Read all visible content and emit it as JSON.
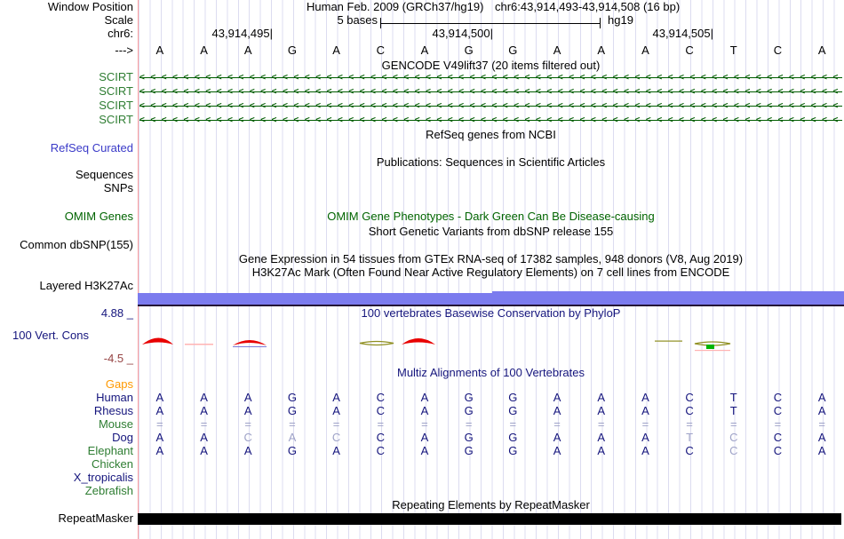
{
  "colors": {
    "grid_line": "#dcdcf0",
    "track_border": "#ffa0a0",
    "navy_text": "#15157d",
    "green_label": "#2e7d32",
    "omim_green": "#006400",
    "refseq_blue": "#3a3ac8",
    "gaps_orange": "#ff9900",
    "min_maroon": "#964444",
    "h3k27ac_bar": "#7b7bee",
    "repeat_bar": "#000000",
    "muted_base": "#9fa3c8",
    "wiggle_red": "#e80000",
    "wiggle_olive": "#8f8f20",
    "wiggle_green": "#00b400"
  },
  "header": {
    "window_position_label": "Window Position",
    "scale_row_label": "Scale",
    "chrom_label": "chr6:",
    "direction_label": "--->",
    "assembly_title": "Human Feb. 2009 (GRCh37/hg19)",
    "position_title": "chr6:43,914,493-43,914,508 (16 bp)",
    "scale_label": "5 bases",
    "assembly_short": "hg19",
    "coordinates": [
      "43,914,495|",
      "43,914,500|",
      "43,914,505|"
    ]
  },
  "sequence": {
    "bases": [
      "A",
      "A",
      "A",
      "G",
      "A",
      "C",
      "A",
      "G",
      "G",
      "A",
      "A",
      "A",
      "C",
      "T",
      "C",
      "A"
    ]
  },
  "tracks": {
    "gencode": {
      "title": "GENCODE V49lift37 (20 items filtered out)",
      "items": [
        "SCIRT",
        "SCIRT",
        "SCIRT",
        "SCIRT"
      ]
    },
    "refseq": {
      "label": "RefSeq Curated",
      "title": "RefSeq genes from NCBI"
    },
    "publications": {
      "label_line1": "Sequences",
      "label_line2": "SNPs",
      "title": "Publications: Sequences in Scientific Articles"
    },
    "omim": {
      "label": "OMIM Genes",
      "title": "OMIM Gene Phenotypes - Dark Green Can Be Disease-causing"
    },
    "dbsnp": {
      "label": "Common dbSNP(155)",
      "title": "Short Genetic Variants from dbSNP release 155"
    },
    "gtex": {
      "title": "Gene Expression in 54 tissues from GTEx RNA-seq of 17382 samples, 948 donors (V8, Aug 2019)"
    },
    "h3k27ac": {
      "label": "Layered H3K27Ac",
      "title": "H3K27Ac Mark (Often Found Near Active Regulatory Elements) on 7 cell lines from ENCODE"
    },
    "conservation": {
      "label": "100 Vert. Cons",
      "title": "100 vertebrates Basewise Conservation by PhyloP",
      "max": "4.88 _",
      "min": "-4.5 _"
    },
    "multiz": {
      "title": "Multiz Alignments of 100 Vertebrates",
      "rows": [
        {
          "label": "Gaps",
          "bases": [],
          "muted": []
        },
        {
          "label": "Human",
          "bases": [
            "A",
            "A",
            "A",
            "G",
            "A",
            "C",
            "A",
            "G",
            "G",
            "A",
            "A",
            "A",
            "C",
            "T",
            "C",
            "A"
          ],
          "muted": []
        },
        {
          "label": "Rhesus",
          "bases": [
            "A",
            "A",
            "A",
            "G",
            "A",
            "C",
            "A",
            "G",
            "G",
            "A",
            "A",
            "A",
            "C",
            "T",
            "C",
            "A"
          ],
          "muted": []
        },
        {
          "label": "Mouse",
          "bases": [
            "=",
            "=",
            "=",
            "=",
            "=",
            "=",
            "=",
            "=",
            "=",
            "=",
            "=",
            "=",
            "=",
            "=",
            "=",
            "="
          ],
          "muted": [
            0,
            1,
            2,
            3,
            4,
            5,
            6,
            7,
            8,
            9,
            10,
            11,
            12,
            13,
            14,
            15
          ]
        },
        {
          "label": "Dog",
          "bases": [
            "A",
            "A",
            "C",
            "A",
            "C",
            "C",
            "A",
            "G",
            "G",
            "A",
            "A",
            "A",
            "T",
            "C",
            "C",
            "A"
          ],
          "muted": [
            2,
            3,
            4,
            12,
            13
          ]
        },
        {
          "label": "Elephant",
          "bases": [
            "A",
            "A",
            "A",
            "G",
            "A",
            "C",
            "A",
            "G",
            "G",
            "A",
            "A",
            "A",
            "C",
            "C",
            "C",
            "A"
          ],
          "muted": [
            13
          ]
        },
        {
          "label": "Chicken",
          "bases": [],
          "muted": []
        },
        {
          "label": "X_tropicalis",
          "bases": [],
          "muted": []
        },
        {
          "label": "Zebrafish",
          "bases": [],
          "muted": []
        }
      ]
    },
    "repeatmasker": {
      "label": "RepeatMasker",
      "title": "Repeating Elements by RepeatMasker"
    }
  }
}
